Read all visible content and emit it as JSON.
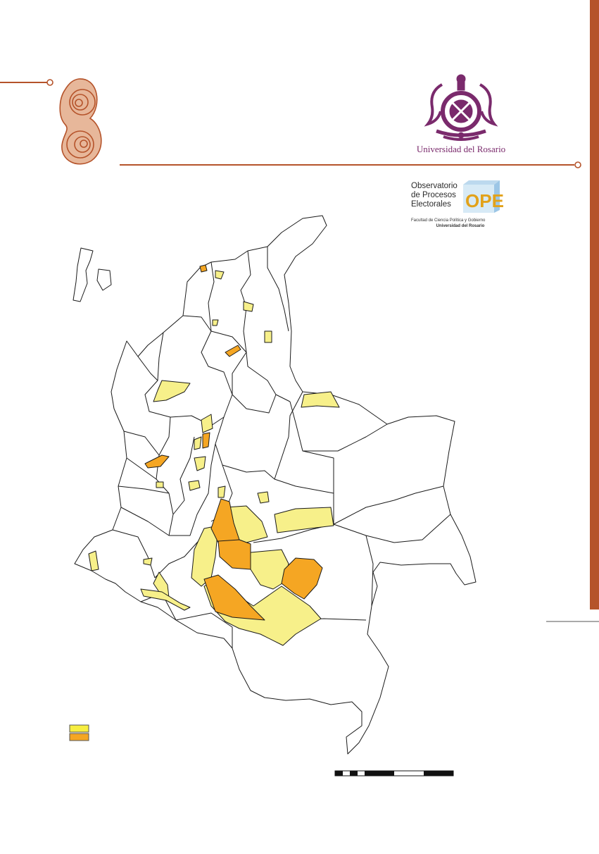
{
  "brand": {
    "university_name": "Universidad del Rosario",
    "crest_icon": "university-crest-icon",
    "ornament_icon": "spiral-ornament-icon"
  },
  "ope_logo": {
    "title_lines": "Observatorio\nde Procesos\nElectorales",
    "mark": "OPE",
    "faculty": "Facultad de Ciencia Política y Gobierno",
    "university": "Universidad del Rosario"
  },
  "map": {
    "subject": "Colombia",
    "legend_items": [
      {
        "label": "",
        "color": "#f7ee82"
      },
      {
        "label": "",
        "color": "#f5a623"
      }
    ],
    "colors": {
      "light_category": "#f7f08a",
      "dark_category": "#f5a623",
      "border": "#1a1a1a",
      "accent": "#b5532a",
      "crest": "#7a2a6c"
    }
  }
}
